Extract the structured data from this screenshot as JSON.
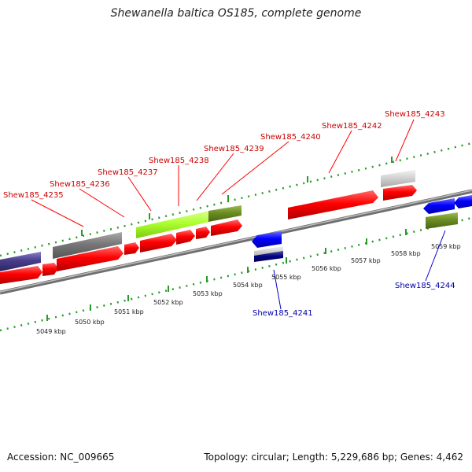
{
  "title": "Shewanella baltica OS185, complete genome",
  "footer": {
    "accession": "Accession: NC_009665",
    "stats": "Topology: circular; Length: 5,229,686 bp; Genes: 4,462"
  },
  "colors": {
    "forward_gene": "#ff0000",
    "reverse_gene": "#0000ff",
    "forward_label": "#cc0000",
    "reverse_label": "#0000aa",
    "scale_ticks": "#2a9a2a",
    "backbone": "#8c8c8c",
    "highlight_gene": "#adff2f",
    "olive_gene": "#6b8e23",
    "gray_gene": "#777777",
    "slate_gene": "#483d8b"
  },
  "scale_labels": [
    "5049 kbp",
    "5050 kbp",
    "5051 kbp",
    "5052 kbp",
    "5053 kbp",
    "5054 kbp",
    "5055 kbp",
    "5056 kbp",
    "5057 kbp",
    "5058 kbp",
    "5059 kbp"
  ],
  "forward_genes": [
    "Shew185_4235",
    "Shew185_4236",
    "Shew185_4237",
    "Shew185_4238",
    "Shew185_4239",
    "Shew185_4240",
    "Shew185_4242",
    "Shew185_4243"
  ],
  "reverse_genes": [
    "Shew185_4241",
    "Shew185_4244"
  ]
}
